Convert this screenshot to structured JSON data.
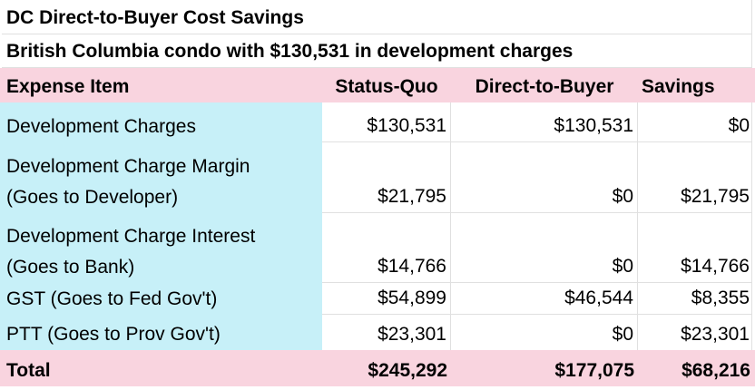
{
  "title": "DC Direct-to-Buyer Cost Savings",
  "subtitle": "British Columbia condo with $130,531 in development charges",
  "header": {
    "expense_item": "Expense Item",
    "status_quo": "Status-Quo",
    "direct_to_buyer": "Direct-to-Buyer",
    "savings": "Savings"
  },
  "rows": [
    {
      "item": "Development Charges",
      "status_quo": "$130,531",
      "direct_to_buyer": "$130,531",
      "savings": "$0"
    },
    {
      "item": "Development Charge Margin\n(Goes to Developer)",
      "status_quo": "$21,795",
      "direct_to_buyer": "$0",
      "savings": "$21,795"
    },
    {
      "item": "Development Charge Interest\n(Goes to Bank)",
      "status_quo": "$14,766",
      "direct_to_buyer": "$0",
      "savings": "$14,766"
    },
    {
      "item": "GST (Goes to Fed Gov't)",
      "status_quo": "$54,899",
      "direct_to_buyer": "$46,544",
      "savings": "$8,355"
    },
    {
      "item": "PTT (Goes to Prov Gov't)",
      "status_quo": "$23,301",
      "direct_to_buyer": "$0",
      "savings": "$23,301"
    }
  ],
  "total": {
    "label": "Total",
    "status_quo": "$245,292",
    "direct_to_buyer": "$177,075",
    "savings": "$68,216"
  },
  "colors": {
    "header_bg": "#f9d4df",
    "total_bg": "#f9d4df",
    "item_column_bg": "#c7f0f8",
    "gridline": "#e0e0e0",
    "text": "#000000"
  }
}
